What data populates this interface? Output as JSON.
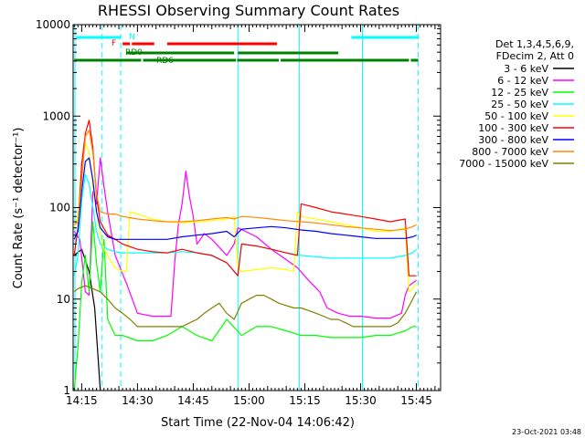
{
  "chart_data": {
    "type": "line",
    "title": "RHESSI Observing Summary Count Rates",
    "xlabel": "Start Time (22-Nov-04 14:06:42)",
    "ylabel": "Count Rate (s⁻¹ detector⁻¹)",
    "y_scale": "log",
    "ylim": [
      1,
      10000
    ],
    "xlim": [
      6.7,
      105.5
    ],
    "x_ticks": [
      {
        "value": 9,
        "label": "14:15"
      },
      {
        "value": 24,
        "label": "14:30"
      },
      {
        "value": 39,
        "label": "14:45"
      },
      {
        "value": 54,
        "label": "15:00"
      },
      {
        "value": 69,
        "label": "15:15"
      },
      {
        "value": 84,
        "label": "15:30"
      },
      {
        "value": 99,
        "label": "15:45"
      }
    ],
    "y_ticks": [
      {
        "value": 1,
        "label": "1"
      },
      {
        "value": 10,
        "label": "10"
      },
      {
        "value": 100,
        "label": "100"
      },
      {
        "value": 1000,
        "label": "1000"
      },
      {
        "value": 10000,
        "label": "10000"
      }
    ],
    "legend_header": [
      "Det 1,3,4,5,6,9,",
      "FDecim 2, Att 0"
    ],
    "legend_position": "right",
    "series": [
      {
        "name": "3 - 6 keV",
        "color": "#000000",
        "x": [
          7,
          9,
          11,
          12.5,
          13.5,
          14
        ],
        "y": [
          30,
          35,
          20,
          8,
          2,
          1
        ]
      },
      {
        "name": "6 - 12 keV",
        "color": "#ff00ff",
        "x": [
          7,
          8.5,
          10,
          11,
          12,
          13,
          14,
          15,
          16,
          18,
          21,
          24,
          28,
          31,
          33,
          34,
          35,
          36,
          37,
          38,
          39,
          40,
          42,
          44,
          48,
          50,
          51,
          53,
          56,
          60,
          64,
          67,
          70,
          73,
          75,
          78,
          81,
          84,
          88,
          92,
          95,
          96,
          97,
          98,
          99
        ],
        "y": [
          55,
          45,
          12,
          11,
          150,
          110,
          350,
          170,
          90,
          30,
          15,
          7,
          6.5,
          6.5,
          6.5,
          25,
          65,
          110,
          250,
          130,
          80,
          40,
          52,
          45,
          30,
          40,
          60,
          55,
          48,
          35,
          27,
          22,
          16,
          12,
          8,
          7,
          6.5,
          6.5,
          6.2,
          6.2,
          7,
          11,
          14,
          15,
          16
        ]
      },
      {
        "name": "12 - 25 keV",
        "color": "#00ff00",
        "x": [
          7,
          8,
          9,
          10,
          11,
          12,
          13,
          14,
          15,
          16,
          18,
          20,
          24,
          28,
          32,
          36,
          40,
          44,
          48,
          52,
          56,
          60,
          64,
          68,
          72,
          76,
          80,
          84,
          88,
          92,
          96,
          98,
          99
        ],
        "y": [
          1,
          3,
          15,
          30,
          12,
          70,
          25,
          12,
          45,
          6,
          4,
          4,
          3.5,
          3.5,
          4,
          5,
          4,
          3.5,
          6,
          4,
          5,
          5,
          4.5,
          4,
          4,
          3.8,
          3.8,
          3.8,
          4,
          4,
          4.5,
          5,
          5
        ]
      },
      {
        "name": "25 - 50 keV",
        "color": "#00ffff",
        "x": [
          7,
          8,
          9,
          10,
          11,
          12,
          13,
          14,
          16,
          18,
          20,
          24,
          28,
          32,
          36,
          40,
          44,
          48,
          51,
          52,
          56,
          60,
          64,
          68,
          72,
          76,
          80,
          84,
          88,
          92,
          96,
          98,
          99
        ],
        "y": [
          18,
          30,
          120,
          230,
          180,
          100,
          55,
          40,
          35,
          33,
          32,
          32,
          32,
          32,
          33,
          32,
          30,
          25,
          18,
          40,
          38,
          35,
          32,
          30,
          29,
          28,
          28,
          28,
          28,
          28,
          30,
          32,
          35
        ]
      },
      {
        "name": "50 - 100 keV",
        "color": "#ffff00",
        "x": [
          7,
          8,
          9,
          10,
          11,
          12,
          13,
          14,
          15,
          16,
          18,
          20,
          21,
          22,
          24,
          26,
          28,
          32,
          36,
          40,
          44,
          48,
          50,
          51,
          52,
          56,
          60,
          64,
          66,
          67,
          68,
          72,
          76,
          80,
          84,
          88,
          92,
          96,
          97,
          98,
          99
        ],
        "y": [
          60,
          80,
          300,
          500,
          400,
          170,
          90,
          50,
          35,
          30,
          22,
          20,
          20,
          90,
          85,
          80,
          75,
          70,
          68,
          70,
          72,
          75,
          80,
          22,
          20,
          21,
          22,
          21,
          20,
          90,
          80,
          75,
          70,
          65,
          60,
          55,
          55,
          60,
          12,
          13,
          15
        ]
      },
      {
        "name": "100 - 300 keV",
        "color": "#ff0000",
        "x": [
          7,
          8,
          9,
          10,
          11,
          12,
          13,
          14,
          16,
          18,
          20,
          24,
          28,
          32,
          36,
          40,
          44,
          48,
          51,
          52,
          56,
          60,
          64,
          67,
          68,
          72,
          76,
          80,
          84,
          88,
          92,
          96,
          97,
          98,
          99
        ],
        "y": [
          30,
          60,
          300,
          650,
          900,
          450,
          130,
          70,
          50,
          45,
          40,
          35,
          33,
          32,
          35,
          32,
          30,
          25,
          18,
          40,
          38,
          35,
          32,
          30,
          110,
          100,
          90,
          85,
          80,
          75,
          70,
          75,
          18,
          18,
          18
        ]
      },
      {
        "name": "300 - 800 keV",
        "color": "#0000ff",
        "x": [
          7,
          8,
          9,
          10,
          11,
          12,
          13,
          14,
          16,
          18,
          20,
          24,
          28,
          32,
          36,
          40,
          44,
          48,
          50,
          52,
          56,
          60,
          64,
          68,
          72,
          76,
          80,
          84,
          88,
          92,
          96,
          98,
          99
        ],
        "y": [
          45,
          55,
          150,
          320,
          350,
          200,
          90,
          60,
          48,
          45,
          45,
          45,
          45,
          45,
          48,
          50,
          52,
          55,
          48,
          58,
          60,
          62,
          60,
          57,
          55,
          52,
          50,
          48,
          46,
          46,
          46,
          48,
          50
        ]
      },
      {
        "name": "800 - 7000 keV",
        "color": "#ff8800",
        "x": [
          7,
          8,
          9,
          10,
          11,
          12,
          13,
          14,
          16,
          18,
          20,
          24,
          28,
          32,
          36,
          40,
          44,
          48,
          50,
          52,
          56,
          60,
          64,
          68,
          72,
          76,
          80,
          84,
          88,
          92,
          96,
          98,
          99
        ],
        "y": [
          65,
          70,
          200,
          600,
          700,
          400,
          140,
          90,
          85,
          85,
          80,
          75,
          72,
          70,
          70,
          72,
          75,
          78,
          75,
          80,
          78,
          75,
          72,
          70,
          68,
          65,
          62,
          60,
          58,
          56,
          58,
          62,
          65
        ]
      },
      {
        "name": "7000 - 15000 keV",
        "color": "#808000",
        "x": [
          7,
          8,
          10,
          12,
          14,
          16,
          18,
          20,
          22,
          24,
          26,
          28,
          30,
          32,
          34,
          36,
          38,
          40,
          42,
          44,
          46,
          48,
          50,
          52,
          54,
          56,
          58,
          60,
          62,
          64,
          66,
          68,
          70,
          72,
          74,
          76,
          78,
          80,
          82,
          84,
          86,
          88,
          90,
          92,
          94,
          96,
          98,
          99
        ],
        "y": [
          12,
          13,
          14,
          13,
          12,
          10,
          8,
          7,
          6,
          5,
          5,
          5,
          5,
          5,
          5,
          5,
          5.5,
          6,
          7,
          8,
          9,
          7,
          6,
          9,
          10,
          11,
          11,
          10,
          9,
          8.5,
          8,
          8,
          7.5,
          7,
          6.5,
          6,
          6,
          5.5,
          5,
          5,
          5,
          5,
          5,
          5,
          5.5,
          7,
          10,
          12
        ]
      }
    ],
    "state_bars": [
      {
        "label": "N",
        "color": "#00ffff",
        "segments": [
          [
            7.5,
            19.5
          ],
          [
            81.5,
            99.5
          ]
        ]
      },
      {
        "label": "F",
        "color": "#ff0000",
        "segments": [
          [
            20,
            22
          ],
          [
            22.5,
            28.5
          ],
          [
            32,
            61.5
          ]
        ]
      },
      {
        "label": "RD0",
        "color": "#008000",
        "segments": [
          [
            21,
            50
          ],
          [
            51,
            78
          ]
        ]
      },
      {
        "label": "RD6",
        "color": "#008000",
        "segments": [
          [
            7,
            25
          ],
          [
            25.5,
            50.5
          ],
          [
            50.8,
            62
          ],
          [
            62.5,
            97
          ],
          [
            97.5,
            99.5
          ]
        ]
      }
    ],
    "vlines_solid": [
      7.2,
      51,
      67.5,
      84.5
    ],
    "vlines_dashed": [
      14.5,
      19.5,
      99.5
    ],
    "corner_timestamp": "23-Oct-2021 03:48"
  }
}
